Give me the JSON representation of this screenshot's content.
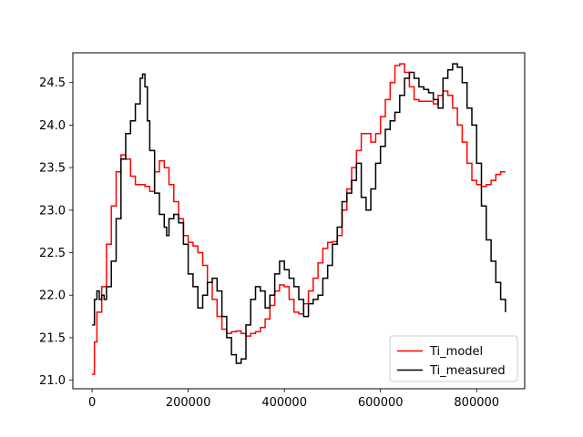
{
  "chart_data": {
    "type": "line",
    "title": "",
    "xlabel": "",
    "ylabel": "",
    "xlim": [
      -40000,
      900000
    ],
    "ylim": [
      20.9,
      24.85
    ],
    "xticks": [
      0,
      200000,
      400000,
      600000,
      800000
    ],
    "xtick_labels": [
      "0",
      "200000",
      "400000",
      "600000",
      "800000"
    ],
    "yticks": [
      21.0,
      21.5,
      22.0,
      22.5,
      23.0,
      23.5,
      24.0,
      24.5
    ],
    "ytick_labels": [
      "21.0",
      "21.5",
      "22.0",
      "22.5",
      "23.0",
      "23.5",
      "24.0",
      "24.5"
    ],
    "grid": false,
    "legend_position": "lower right",
    "series": [
      {
        "name": "Ti_model",
        "color": "#ff0000",
        "x": [
          0,
          5000,
          10000,
          20000,
          30000,
          40000,
          50000,
          60000,
          70000,
          80000,
          90000,
          100000,
          110000,
          120000,
          130000,
          140000,
          150000,
          160000,
          170000,
          180000,
          190000,
          200000,
          210000,
          220000,
          230000,
          240000,
          250000,
          260000,
          270000,
          280000,
          290000,
          300000,
          310000,
          320000,
          330000,
          340000,
          350000,
          360000,
          370000,
          380000,
          390000,
          400000,
          410000,
          420000,
          430000,
          440000,
          450000,
          460000,
          470000,
          480000,
          490000,
          500000,
          510000,
          520000,
          530000,
          540000,
          550000,
          560000,
          570000,
          580000,
          590000,
          600000,
          610000,
          620000,
          630000,
          640000,
          650000,
          660000,
          670000,
          680000,
          690000,
          700000,
          710000,
          720000,
          730000,
          740000,
          750000,
          760000,
          770000,
          780000,
          790000,
          800000,
          810000,
          820000,
          830000,
          840000,
          850000,
          860000
        ],
        "y": [
          21.07,
          21.45,
          21.8,
          22.1,
          22.6,
          23.05,
          23.45,
          23.65,
          23.6,
          23.4,
          23.3,
          23.3,
          23.28,
          23.22,
          23.45,
          23.58,
          23.5,
          23.3,
          23.1,
          22.9,
          22.7,
          22.62,
          22.58,
          22.5,
          22.35,
          22.15,
          21.95,
          21.75,
          21.6,
          21.55,
          21.57,
          21.58,
          21.55,
          21.52,
          21.55,
          21.57,
          21.62,
          21.72,
          21.88,
          22.05,
          22.12,
          22.1,
          21.95,
          21.8,
          21.78,
          21.9,
          22.05,
          22.2,
          22.38,
          22.55,
          22.62,
          22.63,
          22.7,
          23.0,
          23.25,
          23.5,
          23.7,
          23.9,
          23.9,
          23.8,
          23.9,
          24.1,
          24.3,
          24.5,
          24.7,
          24.72,
          24.62,
          24.45,
          24.3,
          24.28,
          24.28,
          24.28,
          24.25,
          24.35,
          24.4,
          24.35,
          24.2,
          24.0,
          23.8,
          23.55,
          23.35,
          23.3,
          23.28,
          23.3,
          23.35,
          23.42,
          23.45,
          23.45
        ]
      },
      {
        "name": "Ti_measured",
        "color": "#000000",
        "x": [
          0,
          5000,
          10000,
          15000,
          20000,
          25000,
          30000,
          40000,
          50000,
          60000,
          70000,
          80000,
          90000,
          100000,
          105000,
          110000,
          115000,
          120000,
          130000,
          140000,
          150000,
          155000,
          160000,
          170000,
          180000,
          190000,
          200000,
          210000,
          220000,
          230000,
          240000,
          250000,
          260000,
          270000,
          280000,
          290000,
          300000,
          310000,
          320000,
          330000,
          340000,
          350000,
          360000,
          370000,
          380000,
          390000,
          400000,
          410000,
          420000,
          430000,
          440000,
          450000,
          460000,
          470000,
          480000,
          490000,
          500000,
          510000,
          520000,
          530000,
          540000,
          550000,
          560000,
          570000,
          580000,
          590000,
          600000,
          610000,
          620000,
          630000,
          640000,
          650000,
          660000,
          670000,
          680000,
          690000,
          700000,
          710000,
          720000,
          730000,
          740000,
          750000,
          760000,
          770000,
          780000,
          790000,
          800000,
          810000,
          820000,
          830000,
          840000,
          850000,
          860000
        ],
        "y": [
          21.65,
          21.95,
          22.05,
          21.95,
          22.0,
          21.95,
          22.1,
          22.4,
          22.9,
          23.6,
          23.9,
          24.05,
          24.25,
          24.55,
          24.6,
          24.45,
          24.05,
          23.7,
          23.2,
          22.95,
          22.8,
          22.7,
          22.9,
          22.95,
          22.85,
          22.6,
          22.25,
          22.1,
          21.85,
          22.0,
          22.15,
          22.2,
          22.05,
          21.75,
          21.5,
          21.3,
          21.2,
          21.25,
          21.65,
          21.95,
          22.1,
          22.05,
          21.85,
          22.0,
          22.25,
          22.4,
          22.3,
          22.2,
          22.1,
          21.95,
          21.75,
          21.9,
          21.95,
          22.0,
          22.2,
          22.35,
          22.6,
          22.8,
          23.1,
          23.2,
          23.35,
          23.55,
          23.15,
          23.0,
          23.25,
          23.55,
          23.75,
          23.95,
          24.05,
          24.15,
          24.35,
          24.55,
          24.62,
          24.55,
          24.45,
          24.42,
          24.38,
          24.3,
          24.2,
          24.55,
          24.65,
          24.72,
          24.68,
          24.5,
          24.2,
          24.0,
          23.55,
          23.05,
          22.65,
          22.4,
          22.15,
          21.95,
          21.8
        ]
      }
    ]
  }
}
